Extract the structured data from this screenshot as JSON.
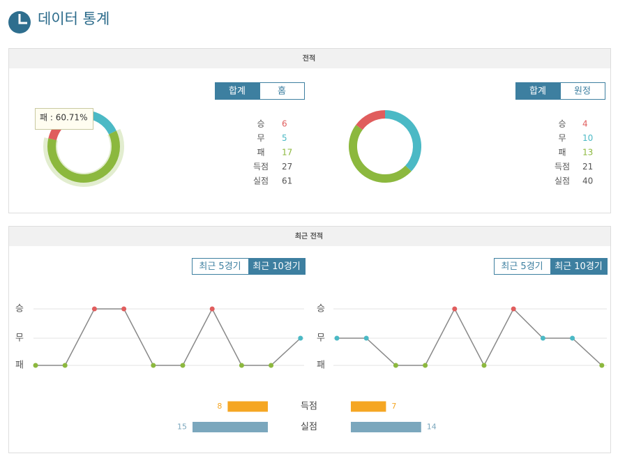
{
  "header": {
    "title": "데이터 통계"
  },
  "result_colors": [
    "#e05d5d",
    "#4bb9c5",
    "#8cb83e"
  ],
  "record": {
    "title": "전적",
    "panels": [
      {
        "tabs": [
          "합계",
          "홈"
        ],
        "active_tab": 0,
        "stats": [
          {
            "label": "승",
            "value": 6
          },
          {
            "label": "무",
            "value": 5
          },
          {
            "label": "패",
            "value": 17
          },
          {
            "label": "득점",
            "value": 27
          },
          {
            "label": "실점",
            "value": 61
          }
        ],
        "tooltip": "패 : 60.71%"
      },
      {
        "tabs": [
          "합계",
          "원정"
        ],
        "active_tab": 0,
        "stats": [
          {
            "label": "승",
            "value": 4
          },
          {
            "label": "무",
            "value": 10
          },
          {
            "label": "패",
            "value": 13
          },
          {
            "label": "득점",
            "value": 21
          },
          {
            "label": "실점",
            "value": 40
          }
        ]
      }
    ]
  },
  "recent": {
    "title": "최근 전적",
    "levels": [
      "승",
      "무",
      "패"
    ],
    "panels": [
      {
        "tabs": [
          "최근 5경기",
          "최근 10경기"
        ],
        "active_tab": 1,
        "results": [
          "패",
          "패",
          "승",
          "승",
          "패",
          "패",
          "승",
          "패",
          "패",
          "무"
        ]
      },
      {
        "tabs": [
          "최근 5경기",
          "최근 10경기"
        ],
        "active_tab": 1,
        "results": [
          "무",
          "무",
          "패",
          "패",
          "승",
          "패",
          "승",
          "무",
          "무",
          "패"
        ]
      }
    ],
    "comparison": [
      {
        "label": "득점",
        "values": [
          8,
          7
        ],
        "color": "#f5a623"
      },
      {
        "label": "실점",
        "values": [
          15,
          14
        ],
        "color": "#7ba7bd"
      }
    ]
  }
}
